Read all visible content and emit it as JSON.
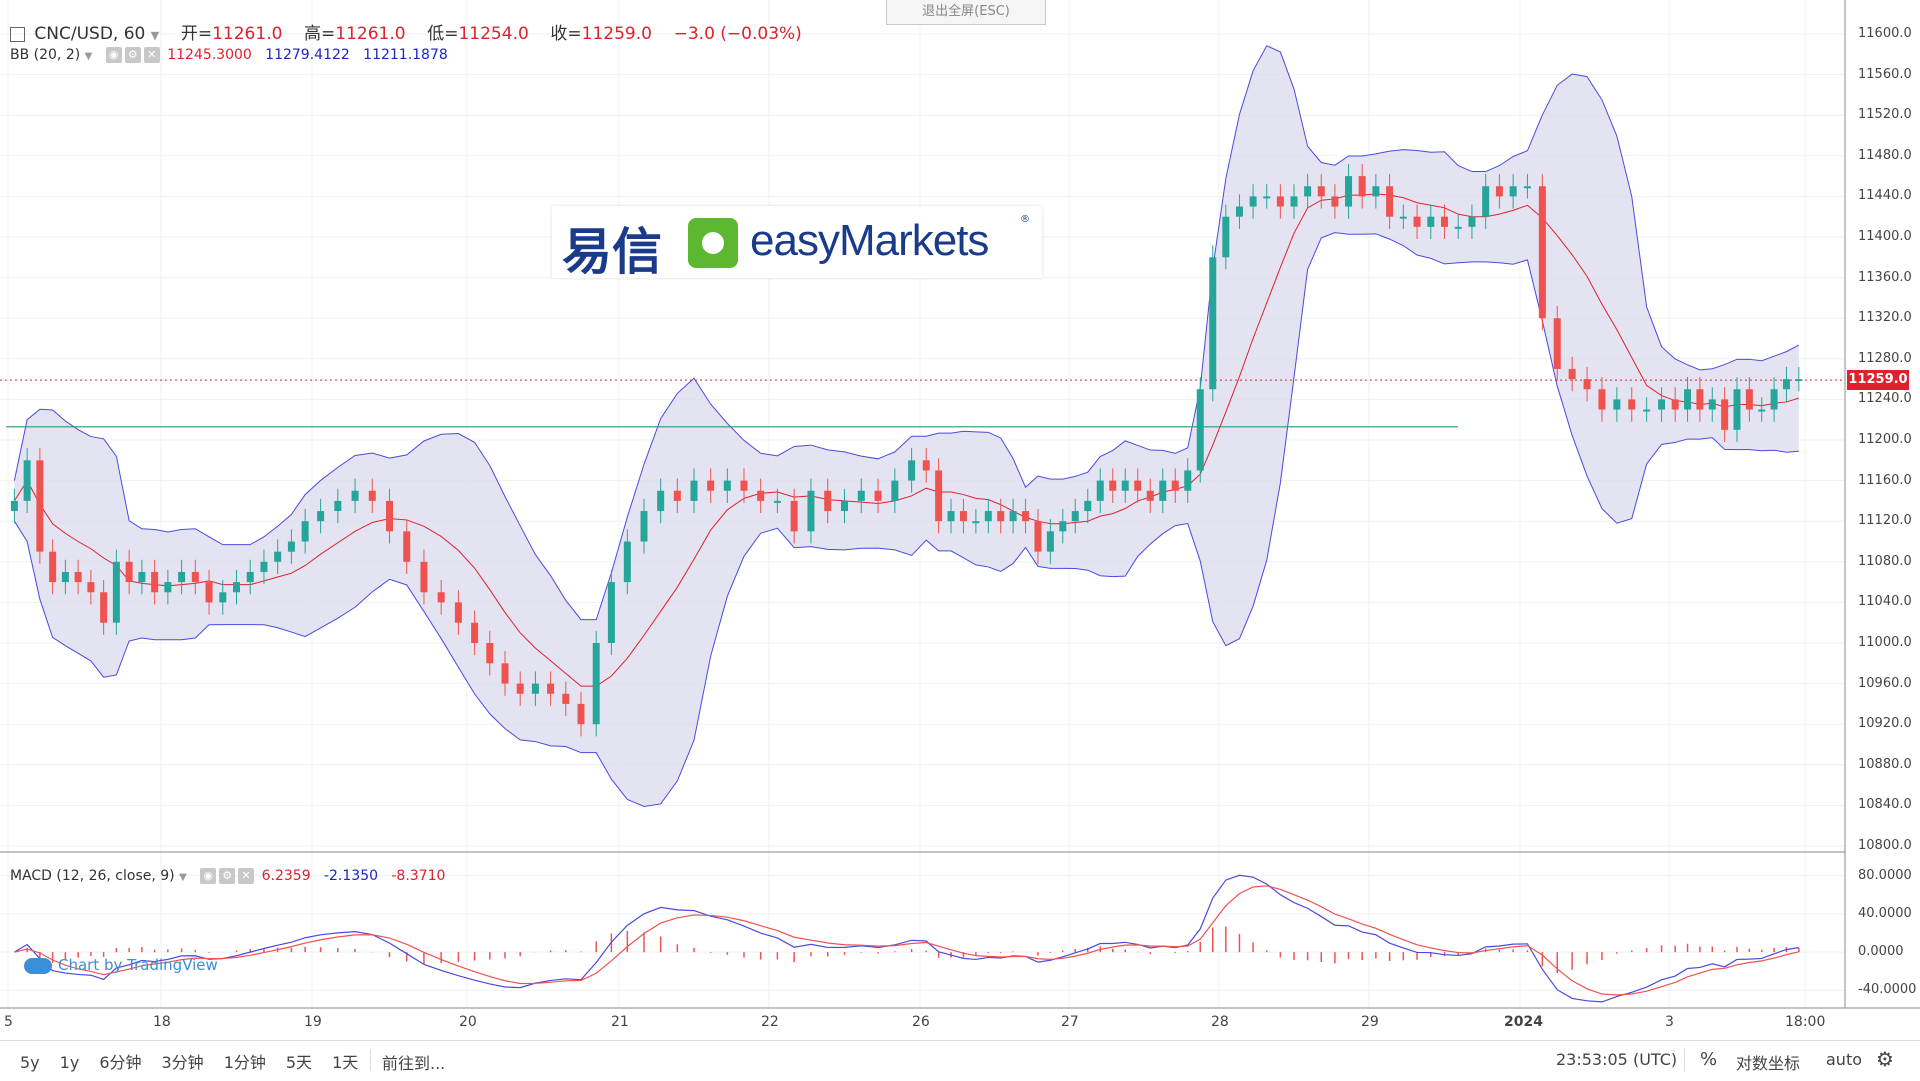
{
  "header": {
    "symbol": "CNC/USD, 60",
    "open_label": "开=",
    "open_value": "11261.0",
    "high_label": "高=",
    "high_value": "11261.0",
    "low_label": "低=",
    "low_value": "11254.0",
    "close_label": "收=",
    "close_value": "11259.0",
    "change": "−3.0 (−0.03%)"
  },
  "fullscreen_exit": "退出全屏(ESC)",
  "bb": {
    "label": "BB (20, 2)",
    "v1": "11245.3000",
    "v2": "11279.4122",
    "v3": "11211.1878"
  },
  "macd": {
    "label": "MACD (12, 26, close, 9)",
    "v1": "6.2359",
    "v2": "-2.1350",
    "v3": "-8.3710"
  },
  "logo": {
    "cn": "易信",
    "en": "easyMarkets",
    "reg": "®"
  },
  "watermark": "Chart by TradingView",
  "price_tag": "11259.0",
  "y_axis_main": [
    "11600.0",
    "11560.0",
    "11520.0",
    "11480.0",
    "11440.0",
    "11400.0",
    "11360.0",
    "11320.0",
    "11280.0",
    "11240.0",
    "11200.0",
    "11160.0",
    "11120.0",
    "11080.0",
    "11040.0",
    "11000.0",
    "10960.0",
    "10920.0",
    "10880.0",
    "10840.0",
    "10800.0"
  ],
  "y_axis_macd": [
    "80.0000",
    "40.0000",
    "0.0000",
    "-40.0000"
  ],
  "x_axis": [
    "5",
    "18",
    "19",
    "20",
    "21",
    "22",
    "26",
    "27",
    "28",
    "29",
    "2024",
    "3",
    "18:00"
  ],
  "bottom": {
    "ranges": [
      "5y",
      "1y",
      "6分钟",
      "3分钟",
      "1分钟",
      "5天",
      "1天"
    ],
    "goto": "前往到...",
    "time": "23:53:05 (UTC)",
    "percent": "%",
    "log": "对数坐标",
    "auto": "auto"
  },
  "colors": {
    "up": "#26a69a",
    "down": "#ef5350",
    "bb_band": "#4a4ae0",
    "bb_fill": "#dcdcee",
    "basis": "#e0202c",
    "hline": "#1e9e6e"
  },
  "chart_data": {
    "type": "candlestick",
    "hline": 11213,
    "last_price": 11259,
    "ylim": [
      10800,
      11600
    ],
    "closes_by_day": [
      {
        "day": "5",
        "values": [
          11140,
          11180,
          11090,
          11060,
          11070,
          11060,
          11050,
          11020,
          11080,
          11060,
          11070,
          11050
        ]
      },
      {
        "day": "18",
        "values": [
          11060,
          11070,
          11060,
          11040,
          11050,
          11060,
          11070,
          11080,
          11090,
          11100,
          11120
        ]
      },
      {
        "day": "19",
        "values": [
          11130,
          11140,
          11150,
          11140,
          11110,
          11080,
          11050,
          11040,
          11020
        ]
      },
      {
        "day": "20",
        "values": [
          11000,
          10980,
          10960,
          10950,
          10960,
          10950,
          10940,
          10920,
          11000,
          11060
        ]
      },
      {
        "day": "21",
        "values": [
          11100,
          11130,
          11150,
          11140,
          11160,
          11150,
          11160,
          11150,
          11140
        ]
      },
      {
        "day": "22",
        "values": [
          11140,
          11110,
          11150,
          11130,
          11140,
          11150,
          11140,
          11160,
          11180
        ]
      },
      {
        "day": "26",
        "values": [
          11170,
          11120,
          11130,
          11120,
          11120,
          11130,
          11120,
          11130,
          11120,
          11090,
          11110,
          11120
        ]
      },
      {
        "day": "27",
        "values": [
          11130,
          11140,
          11160,
          11150,
          11160,
          11150,
          11140,
          11160,
          11150,
          11170,
          11250,
          11380
        ]
      },
      {
        "day": "28",
        "values": [
          11420,
          11430,
          11440,
          11440,
          11430,
          11440,
          11450,
          11440,
          11430,
          11460,
          11440
        ]
      },
      {
        "day": "29",
        "values": [
          11450,
          11420,
          11420,
          11410,
          11420,
          11410,
          11410,
          11420,
          11450,
          11440,
          11450
        ]
      },
      {
        "day": "2024",
        "values": [
          11450,
          11320,
          11270,
          11260,
          11250,
          11230,
          11240,
          11230,
          11230,
          11240
        ]
      },
      {
        "day": "3",
        "values": [
          11230,
          11250,
          11230,
          11240,
          11210,
          11250,
          11230,
          11230,
          11250,
          11260,
          11260
        ]
      }
    ],
    "macd_range": [
      -50,
      90
    ]
  }
}
